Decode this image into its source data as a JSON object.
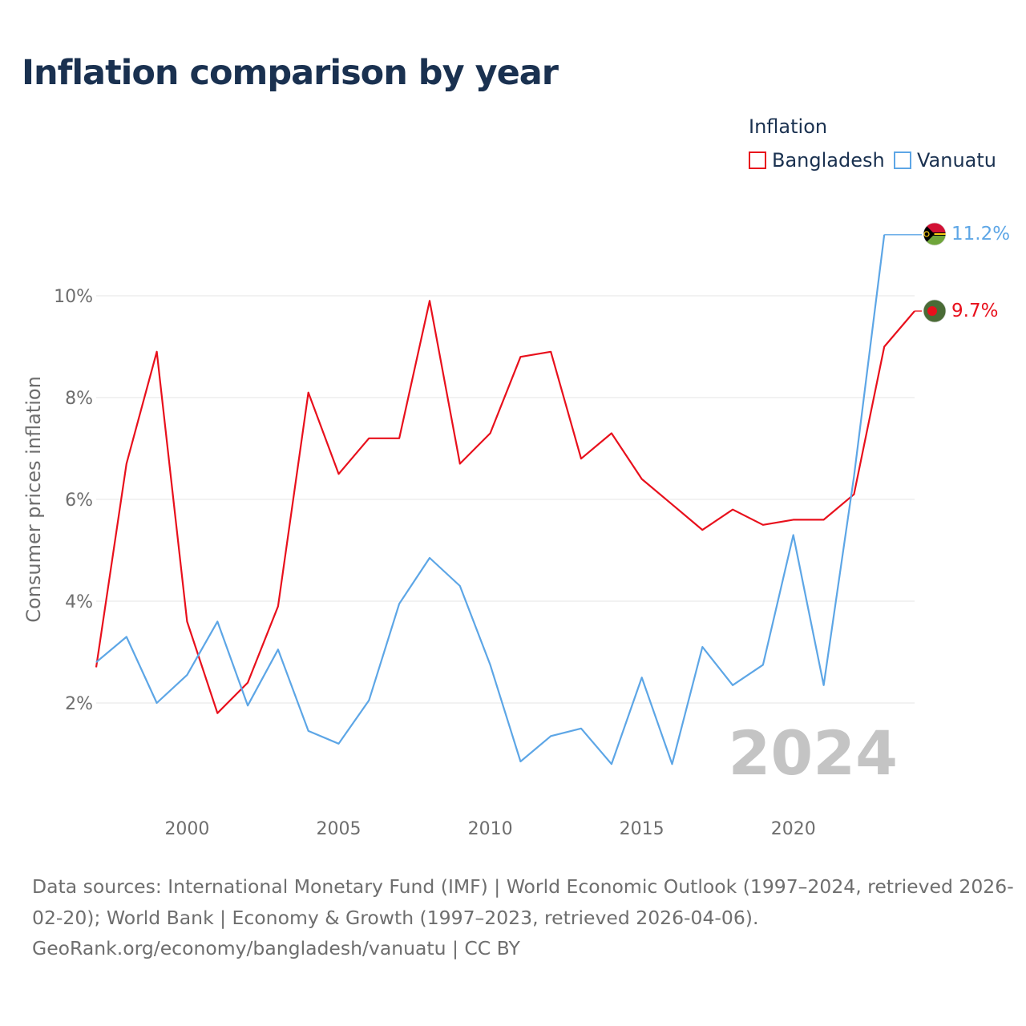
{
  "title": "Inflation comparison by year",
  "legend": {
    "title": "Inflation",
    "items": [
      {
        "label": "Bangladesh",
        "color": "#e8101c"
      },
      {
        "label": "Vanuatu",
        "color": "#5da6e6"
      }
    ]
  },
  "chart_data": {
    "type": "line",
    "ylabel": "Consumer prices inflation",
    "xlabel": "",
    "xlim": [
      1997,
      2024
    ],
    "ylim": [
      0,
      11.2
    ],
    "x_ticks": [
      {
        "value": 2000,
        "label": "2000"
      },
      {
        "value": 2005,
        "label": "2005"
      },
      {
        "value": 2010,
        "label": "2010"
      },
      {
        "value": 2015,
        "label": "2015"
      },
      {
        "value": 2020,
        "label": "2020"
      }
    ],
    "y_ticks": [
      {
        "value": 2,
        "label": "2%"
      },
      {
        "value": 4,
        "label": "4%"
      },
      {
        "value": 6,
        "label": "6%"
      },
      {
        "value": 8,
        "label": "8%"
      },
      {
        "value": 10,
        "label": "10%"
      }
    ],
    "grid": "horizontal",
    "year_watermark": "2024",
    "series": [
      {
        "name": "Bangladesh",
        "color": "#e8101c",
        "end_label": "9.7%",
        "flag": "bangladesh-flag",
        "points": [
          [
            1997,
            2.7
          ],
          [
            1998,
            6.7
          ],
          [
            1999,
            8.9
          ],
          [
            2000,
            3.6
          ],
          [
            2001,
            1.8
          ],
          [
            2002,
            2.4
          ],
          [
            2003,
            3.9
          ],
          [
            2004,
            8.1
          ],
          [
            2005,
            6.5
          ],
          [
            2006,
            7.2
          ],
          [
            2007,
            7.2
          ],
          [
            2008,
            9.9
          ],
          [
            2009,
            6.7
          ],
          [
            2010,
            7.3
          ],
          [
            2011,
            8.8
          ],
          [
            2012,
            8.9
          ],
          [
            2013,
            6.8
          ],
          [
            2014,
            7.3
          ],
          [
            2015,
            6.4
          ],
          [
            2016,
            5.9
          ],
          [
            2017,
            5.4
          ],
          [
            2018,
            5.8
          ],
          [
            2019,
            5.5
          ],
          [
            2020,
            5.6
          ],
          [
            2021,
            5.6
          ],
          [
            2022,
            6.1
          ],
          [
            2023,
            9.0
          ],
          [
            2024,
            9.7
          ]
        ]
      },
      {
        "name": "Vanuatu",
        "color": "#5da6e6",
        "end_label": "11.2%",
        "flag": "vanuatu-flag",
        "points": [
          [
            1997,
            2.8
          ],
          [
            1998,
            3.3
          ],
          [
            1999,
            2.0
          ],
          [
            2000,
            2.55
          ],
          [
            2001,
            3.6
          ],
          [
            2002,
            1.95
          ],
          [
            2003,
            3.05
          ],
          [
            2004,
            1.45
          ],
          [
            2005,
            1.2
          ],
          [
            2006,
            2.05
          ],
          [
            2007,
            3.95
          ],
          [
            2008,
            4.85
          ],
          [
            2009,
            4.3
          ],
          [
            2010,
            2.75
          ],
          [
            2011,
            0.85
          ],
          [
            2012,
            1.35
          ],
          [
            2013,
            1.5
          ],
          [
            2014,
            0.8
          ],
          [
            2015,
            2.5
          ],
          [
            2016,
            0.8
          ],
          [
            2017,
            3.1
          ],
          [
            2018,
            2.35
          ],
          [
            2019,
            2.75
          ],
          [
            2020,
            5.3
          ],
          [
            2021,
            2.35
          ],
          [
            2022,
            6.45
          ],
          [
            2023,
            11.2
          ]
        ]
      }
    ]
  },
  "footer": {
    "line1": "Data sources: International Monetary Fund (IMF) | World Economic Outlook (1997–2024, retrieved 2026-",
    "line2": "02-20); World Bank | Economy & Growth (1997–2023, retrieved 2026-04-06).",
    "line3": "GeoRank.org/economy/bangladesh/vanuatu | CC BY"
  }
}
